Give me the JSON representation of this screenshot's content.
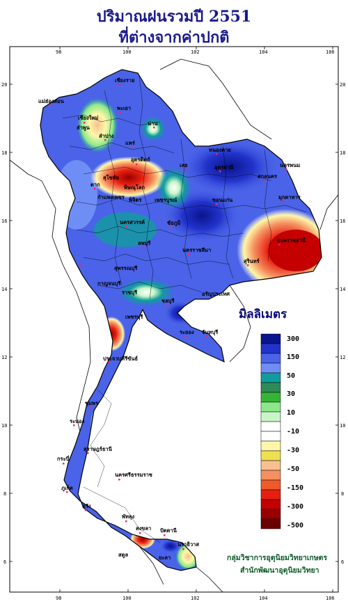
{
  "title_line1": "ปริมาณฝนรวมปี  2551",
  "title_line2": "ที่ต่างจากค่าปกติ",
  "legend": {
    "title": "มิลลิเมตร",
    "labels": [
      "300",
      "150",
      "50",
      "30",
      "10",
      "-10",
      "-30",
      "-50",
      "-150",
      "-300",
      "-500"
    ],
    "colors": [
      "#0a148c",
      "#2233cc",
      "#4a63e8",
      "#6f8ef5",
      "#109c9c",
      "#2e8b57",
      "#35b535",
      "#8ae88a",
      "#c8f6c8",
      "#ffffff",
      "#ffffff",
      "#fff7a8",
      "#f0e050",
      "#f8c090",
      "#f59060",
      "#ee5a2a",
      "#e61f10",
      "#c40000",
      "#9a0000",
      "#6a0000"
    ]
  },
  "axes": {
    "lon_ticks": [
      "98",
      "100",
      "102",
      "104",
      "106"
    ],
    "lat_ticks": [
      "20",
      "18",
      "16",
      "14",
      "12",
      "10",
      "8",
      "6"
    ]
  },
  "provinces": [
    "เชียงราย",
    "แม่ฮ่องสอน",
    "เชียงใหม่",
    "ลำพูน",
    "พะเยา",
    "น่าน",
    "ลำปาง",
    "แพร่",
    "ตาก",
    "อุตรดิตถ์",
    "สุโขทัย",
    "พิษณุโลก",
    "เลย",
    "หนองคาย",
    "อุดรธานี",
    "สกลนคร",
    "นครพนม",
    "มุกดาหาร",
    "ขอนแก่น",
    "กำแพงเพชร",
    "พิจิตร",
    "เพชรบูรณ์",
    "นครสวรรค์",
    "ชัยภูมิ",
    "อุบลราชธานี",
    "ลพบุรี",
    "นครราชสีมา",
    "สุพรรณบุรี",
    "สุรินทร์",
    "กาญจนบุรี",
    "ชลบุรี",
    "ราชบุรี",
    "อรัญประเทศ",
    "เพชรบุรี",
    "ระยอง",
    "จันทบุรี",
    "ประจวบคีรีขันธ์",
    "ชุมพร",
    "ระนอง",
    "สุราษฎร์ธานี",
    "นครศรีธรรมราช",
    "ตรัง",
    "พัทลุง",
    "สงขลา",
    "ปัตตานี",
    "นราธิวาส",
    "กระบี่",
    "ภูเก็ต",
    "สตูล",
    "ยะลา"
  ],
  "credit_line1": "กลุ่มวิชาการอุตุนิยมวิทยาเกษตร",
  "credit_line2": "สำนักพัฒนาอุตุนิยมวิทยา"
}
